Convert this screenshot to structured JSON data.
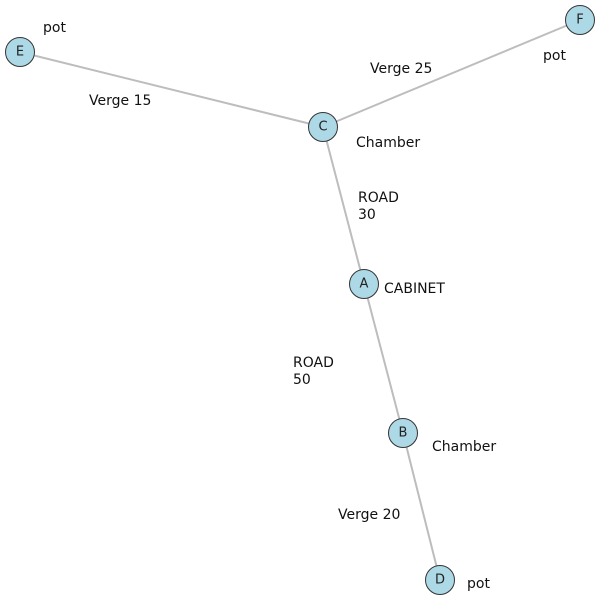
{
  "nodes": [
    {
      "id": "E",
      "type": "pot"
    },
    {
      "id": "F",
      "type": "pot"
    },
    {
      "id": "C",
      "type": "Chamber"
    },
    {
      "id": "A",
      "type": "CABINET"
    },
    {
      "id": "B",
      "type": "Chamber"
    },
    {
      "id": "D",
      "type": "pot"
    }
  ],
  "edges": [
    {
      "from": "E",
      "to": "C",
      "kind": "Verge",
      "length": "15",
      "text": "Verge 15"
    },
    {
      "from": "C",
      "to": "F",
      "kind": "Verge",
      "length": "25",
      "text": "Verge 25"
    },
    {
      "from": "C",
      "to": "A",
      "kind": "ROAD",
      "length": "30",
      "text": "ROAD 30"
    },
    {
      "from": "A",
      "to": "B",
      "kind": "ROAD",
      "length": "50",
      "text": "ROAD 50"
    },
    {
      "from": "B",
      "to": "D",
      "kind": "Verge",
      "length": "20",
      "text": "Verge 20"
    }
  ],
  "colors": {
    "node_fill": "#add8e6",
    "node_stroke": "#333333",
    "edge": "#bdbdbd"
  }
}
